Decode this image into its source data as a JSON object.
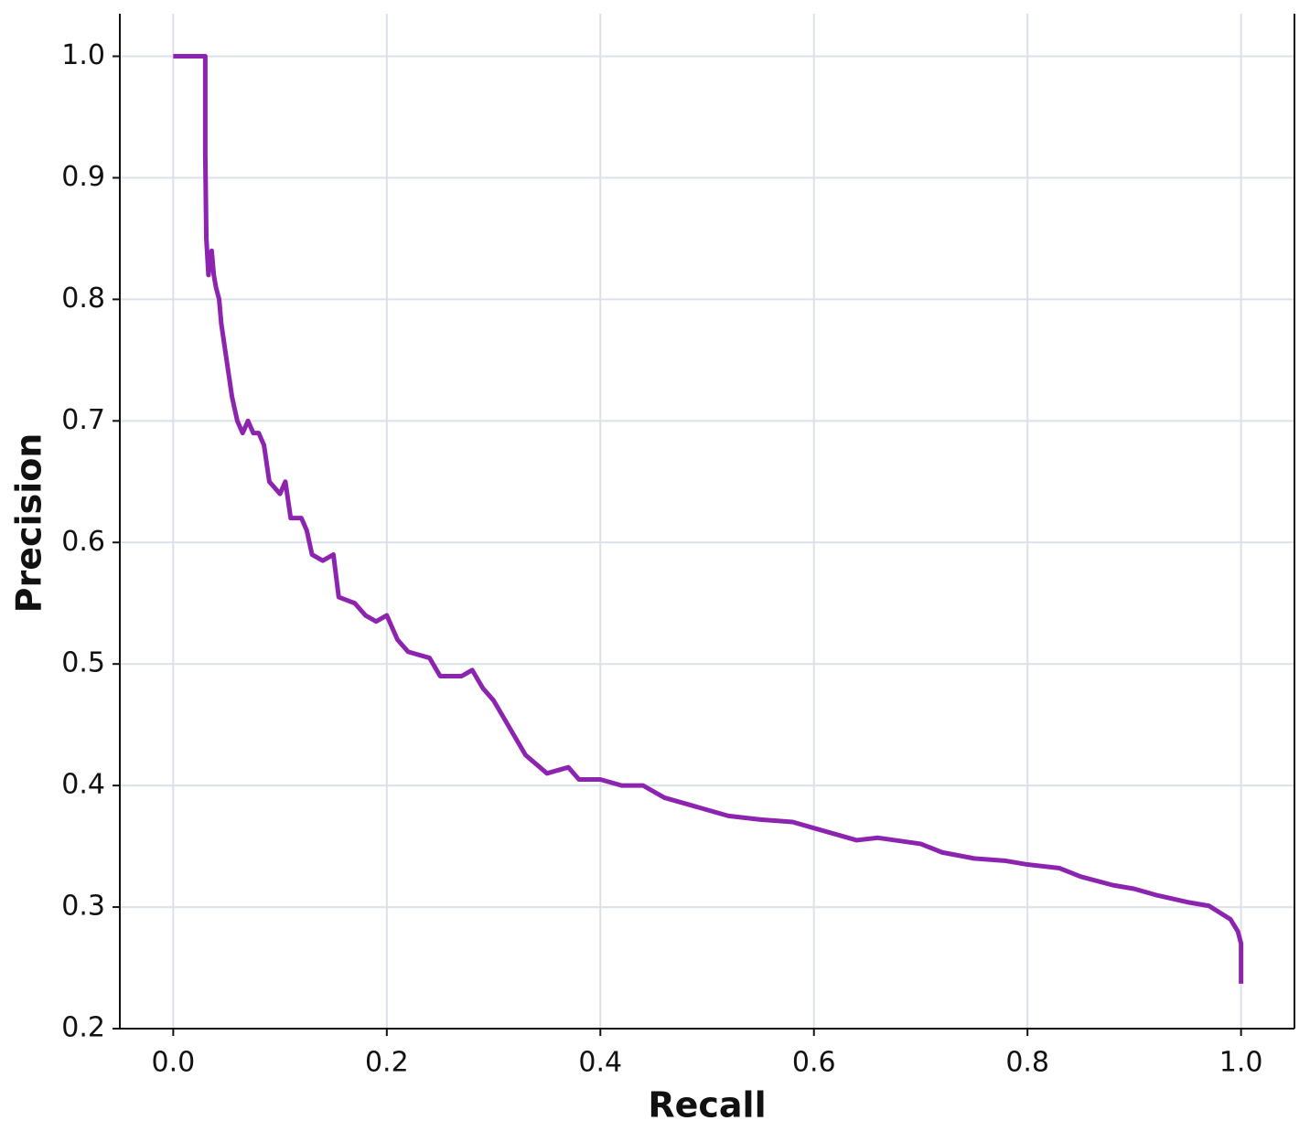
{
  "chart_data": {
    "type": "line",
    "x_label": "Recall",
    "y_label": "Precision",
    "xlim": [
      -0.05,
      1.05
    ],
    "ylim": [
      0.2,
      1.035
    ],
    "xticks": [
      {
        "value": 0,
        "label": "0.0"
      },
      0.2,
      0.4,
      0.6,
      0.8,
      {
        "value": 1,
        "label": "1.0"
      }
    ],
    "yticks": [
      0.2,
      0.3,
      0.4,
      0.5,
      0.6,
      0.7,
      0.8,
      0.9,
      {
        "value": 1,
        "label": "1.0"
      }
    ],
    "grid": true,
    "series": [
      {
        "color": "#8c24b0",
        "x": [
          0.0,
          0.03,
          0.03,
          0.031,
          0.033,
          0.036,
          0.038,
          0.04,
          0.043,
          0.045,
          0.05,
          0.055,
          0.06,
          0.065,
          0.07,
          0.075,
          0.08,
          0.085,
          0.09,
          0.1,
          0.105,
          0.11,
          0.12,
          0.125,
          0.13,
          0.14,
          0.15,
          0.155,
          0.17,
          0.18,
          0.19,
          0.2,
          0.21,
          0.22,
          0.24,
          0.25,
          0.27,
          0.28,
          0.29,
          0.3,
          0.31,
          0.32,
          0.33,
          0.35,
          0.37,
          0.38,
          0.4,
          0.42,
          0.44,
          0.46,
          0.48,
          0.5,
          0.52,
          0.55,
          0.58,
          0.6,
          0.62,
          0.64,
          0.66,
          0.7,
          0.72,
          0.75,
          0.78,
          0.8,
          0.83,
          0.85,
          0.88,
          0.9,
          0.92,
          0.95,
          0.97,
          0.99,
          0.997,
          1.0,
          1.0
        ],
        "values": [
          1.0,
          1.0,
          0.92,
          0.85,
          0.82,
          0.84,
          0.82,
          0.81,
          0.8,
          0.78,
          0.75,
          0.72,
          0.7,
          0.69,
          0.7,
          0.69,
          0.69,
          0.68,
          0.65,
          0.64,
          0.65,
          0.62,
          0.62,
          0.61,
          0.59,
          0.585,
          0.59,
          0.555,
          0.55,
          0.54,
          0.535,
          0.54,
          0.52,
          0.51,
          0.505,
          0.49,
          0.49,
          0.495,
          0.48,
          0.47,
          0.455,
          0.44,
          0.425,
          0.41,
          0.415,
          0.405,
          0.405,
          0.4,
          0.4,
          0.39,
          0.385,
          0.38,
          0.375,
          0.372,
          0.37,
          0.365,
          0.36,
          0.355,
          0.357,
          0.352,
          0.345,
          0.34,
          0.338,
          0.335,
          0.332,
          0.325,
          0.318,
          0.315,
          0.31,
          0.304,
          0.301,
          0.29,
          0.28,
          0.27,
          0.237
        ]
      }
    ]
  }
}
